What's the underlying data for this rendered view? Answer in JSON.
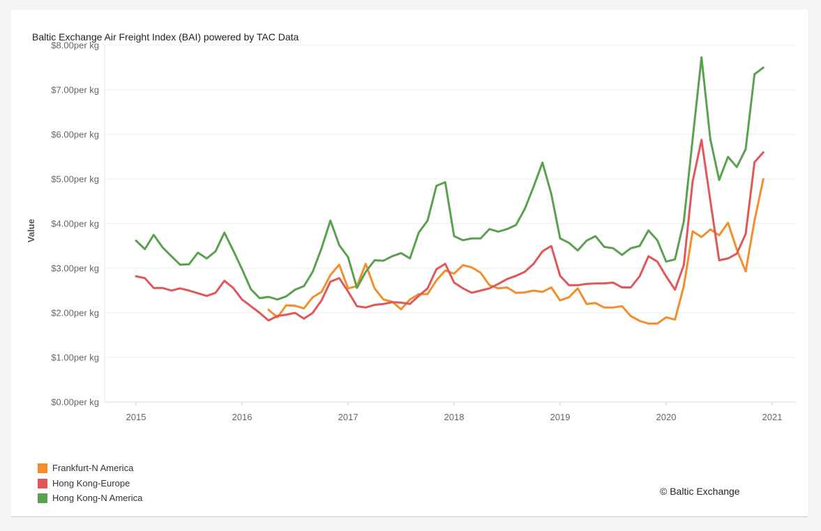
{
  "chart_data": {
    "type": "line",
    "title": "Baltic Exchange Air Freight Index (BAI) powered by TAC Data",
    "ylabel": "Value",
    "xlabel": "",
    "ylim": [
      0,
      8
    ],
    "y_ticks": [
      0,
      1,
      2,
      3,
      4,
      5,
      6,
      7,
      8
    ],
    "y_tick_labels": [
      "$0.00per kg",
      "$1.00per kg",
      "$2.00per kg",
      "$3.00per kg",
      "$4.00per kg",
      "$5.00per kg",
      "$6.00per kg",
      "$7.00per kg",
      "$8.00per kg"
    ],
    "x_ticks": [
      "2015",
      "2016",
      "2017",
      "2018",
      "2019",
      "2020",
      "2021"
    ],
    "x_axis_type": "time",
    "grid": true,
    "legend_position": "bottom-left",
    "series": [
      {
        "name": "Frankfurt-N America",
        "color": "#f28e2b",
        "points": [
          [
            "2016-04",
            2.07
          ],
          [
            "2016-05",
            1.9
          ],
          [
            "2016-06",
            2.17
          ],
          [
            "2016-07",
            2.16
          ],
          [
            "2016-08",
            2.1
          ],
          [
            "2016-09",
            2.35
          ],
          [
            "2016-10",
            2.47
          ],
          [
            "2016-11",
            2.85
          ],
          [
            "2016-12",
            3.08
          ],
          [
            "2017-01",
            2.55
          ],
          [
            "2017-02",
            2.6
          ],
          [
            "2017-03",
            3.1
          ],
          [
            "2017-04",
            2.55
          ],
          [
            "2017-05",
            2.3
          ],
          [
            "2017-06",
            2.25
          ],
          [
            "2017-07",
            2.08
          ],
          [
            "2017-08",
            2.3
          ],
          [
            "2017-09",
            2.42
          ],
          [
            "2017-10",
            2.42
          ],
          [
            "2017-11",
            2.73
          ],
          [
            "2017-12",
            2.95
          ],
          [
            "2018-01",
            2.88
          ],
          [
            "2018-02",
            3.07
          ],
          [
            "2018-03",
            3.02
          ],
          [
            "2018-04",
            2.9
          ],
          [
            "2018-05",
            2.62
          ],
          [
            "2018-06",
            2.55
          ],
          [
            "2018-07",
            2.57
          ],
          [
            "2018-08",
            2.45
          ],
          [
            "2018-09",
            2.46
          ],
          [
            "2018-10",
            2.5
          ],
          [
            "2018-11",
            2.47
          ],
          [
            "2018-12",
            2.57
          ],
          [
            "2019-01",
            2.28
          ],
          [
            "2019-02",
            2.35
          ],
          [
            "2019-03",
            2.55
          ],
          [
            "2019-04",
            2.2
          ],
          [
            "2019-05",
            2.22
          ],
          [
            "2019-06",
            2.12
          ],
          [
            "2019-07",
            2.12
          ],
          [
            "2019-08",
            2.15
          ],
          [
            "2019-09",
            1.93
          ],
          [
            "2019-10",
            1.82
          ],
          [
            "2019-11",
            1.76
          ],
          [
            "2019-12",
            1.76
          ],
          [
            "2020-01",
            1.9
          ],
          [
            "2020-02",
            1.85
          ],
          [
            "2020-03",
            2.6
          ],
          [
            "2020-04",
            3.83
          ],
          [
            "2020-05",
            3.7
          ],
          [
            "2020-06",
            3.87
          ],
          [
            "2020-07",
            3.74
          ],
          [
            "2020-08",
            4.02
          ],
          [
            "2020-09",
            3.42
          ],
          [
            "2020-10",
            2.93
          ],
          [
            "2020-11",
            4.07
          ],
          [
            "2020-12",
            5.0
          ]
        ]
      },
      {
        "name": "Hong Kong-Europe",
        "color": "#e15759",
        "points": [
          [
            "2015-01",
            2.82
          ],
          [
            "2015-02",
            2.78
          ],
          [
            "2015-03",
            2.56
          ],
          [
            "2015-04",
            2.56
          ],
          [
            "2015-05",
            2.5
          ],
          [
            "2015-06",
            2.55
          ],
          [
            "2015-07",
            2.5
          ],
          [
            "2015-08",
            2.44
          ],
          [
            "2015-09",
            2.38
          ],
          [
            "2015-10",
            2.45
          ],
          [
            "2015-11",
            2.72
          ],
          [
            "2015-12",
            2.56
          ],
          [
            "2016-01",
            2.3
          ],
          [
            "2016-02",
            2.15
          ],
          [
            "2016-03",
            2.0
          ],
          [
            "2016-04",
            1.83
          ],
          [
            "2016-05",
            1.93
          ],
          [
            "2016-06",
            1.96
          ],
          [
            "2016-07",
            2.0
          ],
          [
            "2016-08",
            1.87
          ],
          [
            "2016-09",
            2.0
          ],
          [
            "2016-10",
            2.28
          ],
          [
            "2016-11",
            2.7
          ],
          [
            "2016-12",
            2.78
          ],
          [
            "2017-01",
            2.48
          ],
          [
            "2017-02",
            2.15
          ],
          [
            "2017-03",
            2.12
          ],
          [
            "2017-04",
            2.18
          ],
          [
            "2017-05",
            2.2
          ],
          [
            "2017-06",
            2.24
          ],
          [
            "2017-07",
            2.23
          ],
          [
            "2017-08",
            2.2
          ],
          [
            "2017-09",
            2.38
          ],
          [
            "2017-10",
            2.55
          ],
          [
            "2017-11",
            2.98
          ],
          [
            "2017-12",
            3.1
          ],
          [
            "2018-01",
            2.68
          ],
          [
            "2018-02",
            2.55
          ],
          [
            "2018-03",
            2.45
          ],
          [
            "2018-04",
            2.5
          ],
          [
            "2018-05",
            2.55
          ],
          [
            "2018-06",
            2.65
          ],
          [
            "2018-07",
            2.76
          ],
          [
            "2018-08",
            2.83
          ],
          [
            "2018-09",
            2.92
          ],
          [
            "2018-10",
            3.1
          ],
          [
            "2018-11",
            3.38
          ],
          [
            "2018-12",
            3.5
          ],
          [
            "2019-01",
            2.83
          ],
          [
            "2019-02",
            2.62
          ],
          [
            "2019-03",
            2.62
          ],
          [
            "2019-04",
            2.65
          ],
          [
            "2019-05",
            2.66
          ],
          [
            "2019-06",
            2.66
          ],
          [
            "2019-07",
            2.68
          ],
          [
            "2019-08",
            2.57
          ],
          [
            "2019-09",
            2.57
          ],
          [
            "2019-10",
            2.82
          ],
          [
            "2019-11",
            3.27
          ],
          [
            "2019-12",
            3.15
          ],
          [
            "2020-01",
            2.82
          ],
          [
            "2020-02",
            2.52
          ],
          [
            "2020-03",
            3.07
          ],
          [
            "2020-04",
            4.95
          ],
          [
            "2020-05",
            5.88
          ],
          [
            "2020-06",
            4.52
          ],
          [
            "2020-07",
            3.18
          ],
          [
            "2020-08",
            3.22
          ],
          [
            "2020-09",
            3.33
          ],
          [
            "2020-10",
            3.77
          ],
          [
            "2020-11",
            5.38
          ],
          [
            "2020-12",
            5.6
          ]
        ]
      },
      {
        "name": "Hong Kong-N America",
        "color": "#59a14f",
        "points": [
          [
            "2015-01",
            3.62
          ],
          [
            "2015-02",
            3.43
          ],
          [
            "2015-03",
            3.75
          ],
          [
            "2015-04",
            3.47
          ],
          [
            "2015-05",
            3.27
          ],
          [
            "2015-06",
            3.08
          ],
          [
            "2015-07",
            3.09
          ],
          [
            "2015-08",
            3.35
          ],
          [
            "2015-09",
            3.22
          ],
          [
            "2015-10",
            3.38
          ],
          [
            "2015-11",
            3.8
          ],
          [
            "2015-12",
            3.4
          ],
          [
            "2016-01",
            2.98
          ],
          [
            "2016-02",
            2.53
          ],
          [
            "2016-03",
            2.33
          ],
          [
            "2016-04",
            2.36
          ],
          [
            "2016-05",
            2.3
          ],
          [
            "2016-06",
            2.37
          ],
          [
            "2016-07",
            2.52
          ],
          [
            "2016-08",
            2.6
          ],
          [
            "2016-09",
            2.92
          ],
          [
            "2016-10",
            3.45
          ],
          [
            "2016-11",
            4.07
          ],
          [
            "2016-12",
            3.52
          ],
          [
            "2017-01",
            3.25
          ],
          [
            "2017-02",
            2.56
          ],
          [
            "2017-03",
            2.92
          ],
          [
            "2017-04",
            3.18
          ],
          [
            "2017-05",
            3.17
          ],
          [
            "2017-06",
            3.27
          ],
          [
            "2017-07",
            3.34
          ],
          [
            "2017-08",
            3.22
          ],
          [
            "2017-09",
            3.8
          ],
          [
            "2017-10",
            4.07
          ],
          [
            "2017-11",
            4.85
          ],
          [
            "2017-12",
            4.93
          ],
          [
            "2018-01",
            3.72
          ],
          [
            "2018-02",
            3.63
          ],
          [
            "2018-03",
            3.67
          ],
          [
            "2018-04",
            3.67
          ],
          [
            "2018-05",
            3.88
          ],
          [
            "2018-06",
            3.82
          ],
          [
            "2018-07",
            3.88
          ],
          [
            "2018-08",
            3.97
          ],
          [
            "2018-09",
            4.33
          ],
          [
            "2018-10",
            4.83
          ],
          [
            "2018-11",
            5.37
          ],
          [
            "2018-12",
            4.67
          ],
          [
            "2019-01",
            3.67
          ],
          [
            "2019-02",
            3.57
          ],
          [
            "2019-03",
            3.4
          ],
          [
            "2019-04",
            3.62
          ],
          [
            "2019-05",
            3.72
          ],
          [
            "2019-06",
            3.48
          ],
          [
            "2019-07",
            3.45
          ],
          [
            "2019-08",
            3.3
          ],
          [
            "2019-09",
            3.45
          ],
          [
            "2019-10",
            3.5
          ],
          [
            "2019-11",
            3.85
          ],
          [
            "2019-12",
            3.63
          ],
          [
            "2020-01",
            3.15
          ],
          [
            "2020-02",
            3.2
          ],
          [
            "2020-03",
            4.05
          ],
          [
            "2020-04",
            5.9
          ],
          [
            "2020-05",
            7.73
          ],
          [
            "2020-06",
            5.9
          ],
          [
            "2020-07",
            4.98
          ],
          [
            "2020-08",
            5.5
          ],
          [
            "2020-09",
            5.27
          ],
          [
            "2020-10",
            5.67
          ],
          [
            "2020-11",
            7.35
          ],
          [
            "2020-12",
            7.5
          ]
        ]
      }
    ],
    "annotation": "© Baltic Exchange"
  }
}
